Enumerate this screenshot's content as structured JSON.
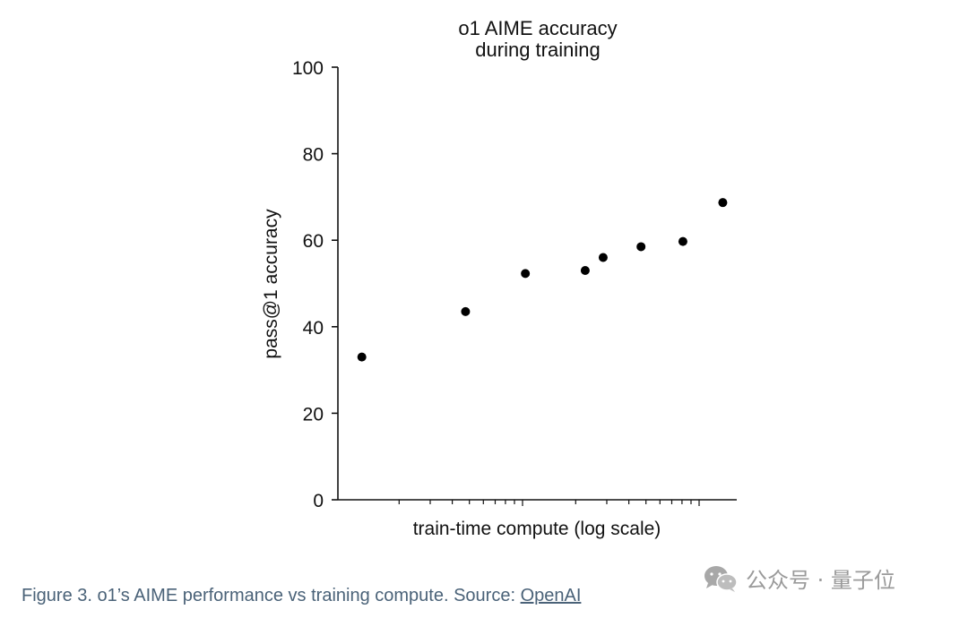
{
  "chart_data": {
    "type": "scatter",
    "title": [
      "o1 AIME accuracy",
      "during training"
    ],
    "xlabel": "train-time compute (log scale)",
    "ylabel": "pass@1 accuracy",
    "xscale": "log",
    "x_tick_labels_shown": false,
    "ylim": [
      0,
      100
    ],
    "yticks": [
      0,
      20,
      40,
      60,
      80,
      100
    ],
    "grid": false,
    "legend": "none",
    "marker_color": "#000000",
    "points": [
      {
        "x_rel": 0.06,
        "y": 33
      },
      {
        "x_rel": 0.32,
        "y": 43.5
      },
      {
        "x_rel": 0.47,
        "y": 52.3
      },
      {
        "x_rel": 0.62,
        "y": 53
      },
      {
        "x_rel": 0.665,
        "y": 56
      },
      {
        "x_rel": 0.76,
        "y": 58.5
      },
      {
        "x_rel": 0.865,
        "y": 59.7
      },
      {
        "x_rel": 0.965,
        "y": 68.7
      }
    ]
  },
  "caption": {
    "text": "Figure 3. o1’s AIME performance vs training compute. Source: ",
    "link_text": "OpenAI",
    "color": "#4a6278"
  },
  "watermark": {
    "text": "公众号 · 量子位",
    "icon": "wechat-icon",
    "color": "#9a9a9a"
  }
}
